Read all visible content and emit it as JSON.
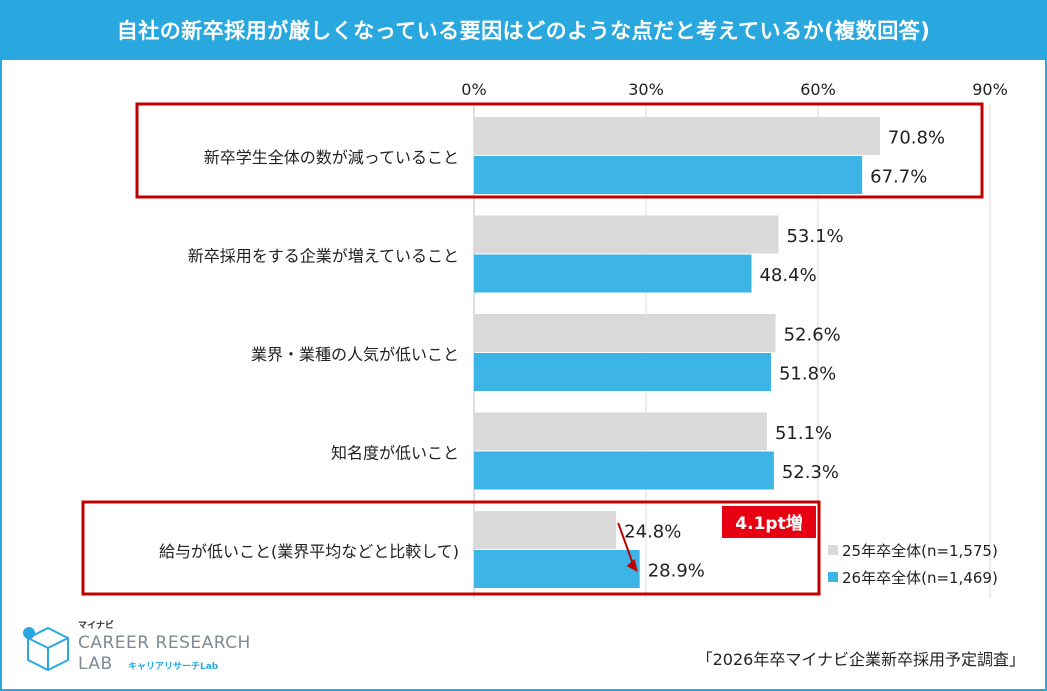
{
  "title": "自社の新卒採用が厳しくなっている要因はどのような点だと考えているか(複数回答)",
  "chart_data": {
    "type": "bar",
    "orientation": "horizontal",
    "xlim": [
      0,
      90
    ],
    "ticks": [
      "0%",
      "30%",
      "60%",
      "90%"
    ],
    "tick_values": [
      0,
      30,
      60,
      90
    ],
    "categories": [
      "新卒学生全体の数が減っていること",
      "新卒採用をする企業が増えていること",
      "業界・業種の人気が低いこと",
      "知名度が低いこと",
      "給与が低いこと(業界平均などと比較して)"
    ],
    "series": [
      {
        "name": "25年卒全体(n=1,575)",
        "color": "#d9d9d9",
        "values": [
          70.8,
          53.1,
          52.6,
          51.1,
          24.8
        ],
        "labels": [
          "70.8%",
          "53.1%",
          "52.6%",
          "51.1%",
          "24.8%"
        ]
      },
      {
        "name": "26年卒全体(n=1,469)",
        "color": "#3cb4e6",
        "values": [
          67.7,
          48.4,
          51.8,
          52.3,
          28.9
        ],
        "labels": [
          "67.7%",
          "48.4%",
          "51.8%",
          "52.3%",
          "28.9%"
        ]
      }
    ],
    "highlighted_categories": [
      0,
      4
    ],
    "highlight_color": "#c00000",
    "annotation": {
      "text": "4.1pt増",
      "category": 4,
      "color": "#e60012"
    },
    "legend_position": "bottom-right",
    "grid": true
  },
  "logo": {
    "small": "マイナビ",
    "main": "CAREER RESEARCH",
    "lab": "LAB",
    "sub": "キャリアリサーチLab"
  },
  "source": "「2026年卒マイナビ企業新卒採用予定調査」"
}
